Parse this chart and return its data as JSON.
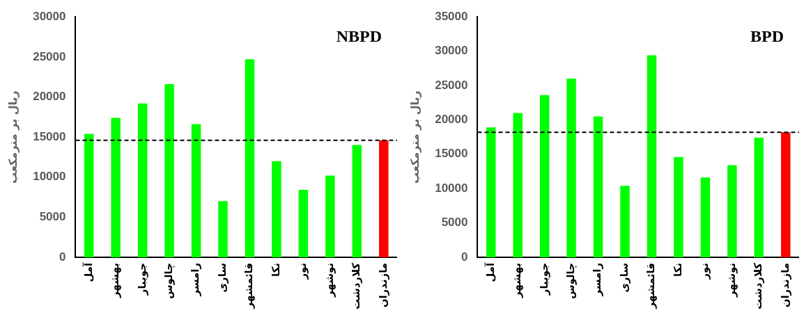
{
  "chart_data": [
    {
      "type": "bar",
      "title": "NBPD",
      "ylabel": "ریال بر مترمکعب",
      "categories": [
        "آمل",
        "بهشهر",
        "جویبار",
        "چالوس",
        "رامسر",
        "ساری",
        "قائمشهر",
        "نکا",
        "نور",
        "نوشهر",
        "کلاردشت",
        "مازندران"
      ],
      "values": [
        15400,
        17400,
        19200,
        21600,
        16600,
        7000,
        24700,
        12000,
        8400,
        10200,
        14000,
        14600
      ],
      "colors": [
        "#00ff00",
        "#00ff00",
        "#00ff00",
        "#00ff00",
        "#00ff00",
        "#00ff00",
        "#00ff00",
        "#00ff00",
        "#00ff00",
        "#00ff00",
        "#00ff00",
        "#ff0000"
      ],
      "ylim": [
        0,
        30000
      ],
      "yticks": [
        0,
        5000,
        10000,
        15000,
        20000,
        25000,
        30000
      ],
      "grid": false,
      "legend": false,
      "ref_lines": [
        {
          "axis": "y",
          "value": 14600,
          "color": "#000000",
          "line_style": "dashed"
        }
      ]
    },
    {
      "type": "bar",
      "title": "BPD",
      "ylabel": "ریال بر مترمکعب",
      "categories": [
        "آمل",
        "بهشهر",
        "جویبار",
        "چالوس",
        "رامسر",
        "ساری",
        "قائمشهر",
        "نکا",
        "نور",
        "نوشهر",
        "کلاردشت",
        "مازندران"
      ],
      "values": [
        18900,
        21000,
        23600,
        26000,
        20500,
        10400,
        29400,
        14600,
        11600,
        13400,
        17400,
        18200
      ],
      "colors": [
        "#00ff00",
        "#00ff00",
        "#00ff00",
        "#00ff00",
        "#00ff00",
        "#00ff00",
        "#00ff00",
        "#00ff00",
        "#00ff00",
        "#00ff00",
        "#00ff00",
        "#ff0000"
      ],
      "ylim": [
        0,
        35000
      ],
      "yticks": [
        0,
        5000,
        10000,
        15000,
        20000,
        25000,
        30000,
        35000
      ],
      "grid": false,
      "legend": false,
      "ref_lines": [
        {
          "axis": "y",
          "value": 18200,
          "color": "#000000",
          "line_style": "dashed"
        }
      ]
    }
  ]
}
